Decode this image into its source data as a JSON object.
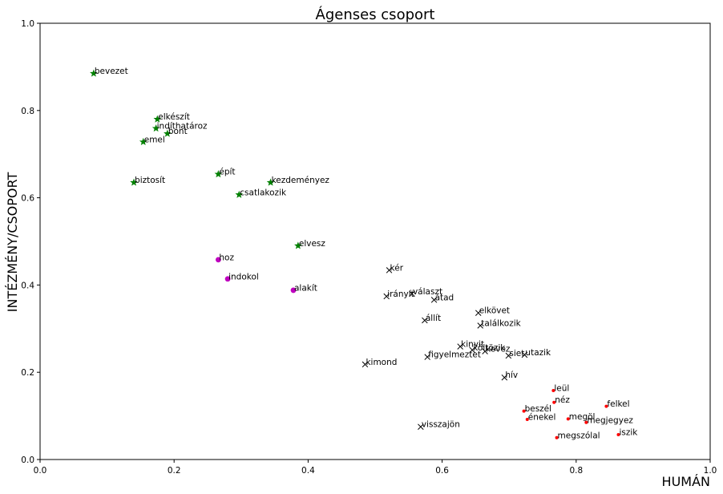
{
  "chart_data": {
    "type": "scatter",
    "title": "Ágenses csoport",
    "xlabel": "HUMÁN",
    "ylabel": "INTÉZMÉNY/CSOPORT",
    "xlim": [
      0,
      1
    ],
    "ylim": [
      0,
      1
    ],
    "x_ticks": [
      "0.0",
      "0.2",
      "0.4",
      "0.6",
      "0.8",
      "1.0"
    ],
    "y_ticks": [
      "0.0",
      "0.2",
      "0.4",
      "0.6",
      "0.8",
      "1.0"
    ],
    "grid": false,
    "series": [
      {
        "marker": "star",
        "color": "#008000",
        "points": [
          {
            "label": "bevezet",
            "x": 0.08,
            "y": 0.885
          },
          {
            "label": "elkészít",
            "x": 0.175,
            "y": 0.78
          },
          {
            "label": "indíthatároz",
            "x": 0.173,
            "y": 0.759
          },
          {
            "label": "bont",
            "x": 0.19,
            "y": 0.747
          },
          {
            "label": "emel",
            "x": 0.154,
            "y": 0.728
          },
          {
            "label": "épít",
            "x": 0.266,
            "y": 0.654
          },
          {
            "label": "biztosít",
            "x": 0.14,
            "y": 0.635
          },
          {
            "label": "kezdeményez",
            "x": 0.344,
            "y": 0.635
          },
          {
            "label": "csatlakozik",
            "x": 0.297,
            "y": 0.607
          },
          {
            "label": "elvesz",
            "x": 0.385,
            "y": 0.49
          }
        ]
      },
      {
        "marker": "circle",
        "color": "#bf00bf",
        "points": [
          {
            "label": "hoz",
            "x": 0.266,
            "y": 0.458
          },
          {
            "label": "indokol",
            "x": 0.28,
            "y": 0.414
          },
          {
            "label": "alakít",
            "x": 0.378,
            "y": 0.388
          }
        ]
      },
      {
        "marker": "x",
        "color": "#000000",
        "points": [
          {
            "label": "kér",
            "x": 0.521,
            "y": 0.434
          },
          {
            "label": "választ",
            "x": 0.555,
            "y": 0.38
          },
          {
            "label": "irányít",
            "x": 0.517,
            "y": 0.374
          },
          {
            "label": "átad",
            "x": 0.588,
            "y": 0.366
          },
          {
            "label": "elkövet",
            "x": 0.654,
            "y": 0.336
          },
          {
            "label": "állít",
            "x": 0.574,
            "y": 0.319
          },
          {
            "label": "találkozik",
            "x": 0.657,
            "y": 0.307
          },
          {
            "label": "kinyit",
            "x": 0.627,
            "y": 0.259
          },
          {
            "label": "költözik",
            "x": 0.645,
            "y": 0.251
          },
          {
            "label": "kevez",
            "x": 0.664,
            "y": 0.248
          },
          {
            "label": "siet",
            "x": 0.699,
            "y": 0.238
          },
          {
            "label": "utazik",
            "x": 0.723,
            "y": 0.24
          },
          {
            "label": "figyelmeztet",
            "x": 0.578,
            "y": 0.235
          },
          {
            "label": "kimond",
            "x": 0.485,
            "y": 0.218
          },
          {
            "label": "hív",
            "x": 0.693,
            "y": 0.188
          },
          {
            "label": "visszajön",
            "x": 0.568,
            "y": 0.075
          }
        ]
      },
      {
        "marker": "dot",
        "color": "#ff0000",
        "points": [
          {
            "label": "leül",
            "x": 0.766,
            "y": 0.158
          },
          {
            "label": "néz",
            "x": 0.767,
            "y": 0.131
          },
          {
            "label": "felkel",
            "x": 0.845,
            "y": 0.122
          },
          {
            "label": "beszél",
            "x": 0.722,
            "y": 0.111
          },
          {
            "label": "énekel",
            "x": 0.727,
            "y": 0.092
          },
          {
            "label": "megöl",
            "x": 0.788,
            "y": 0.093
          },
          {
            "label": "megjegyez",
            "x": 0.815,
            "y": 0.085
          },
          {
            "label": "iszik",
            "x": 0.863,
            "y": 0.057
          },
          {
            "label": "megszólal",
            "x": 0.771,
            "y": 0.05
          }
        ]
      }
    ]
  }
}
